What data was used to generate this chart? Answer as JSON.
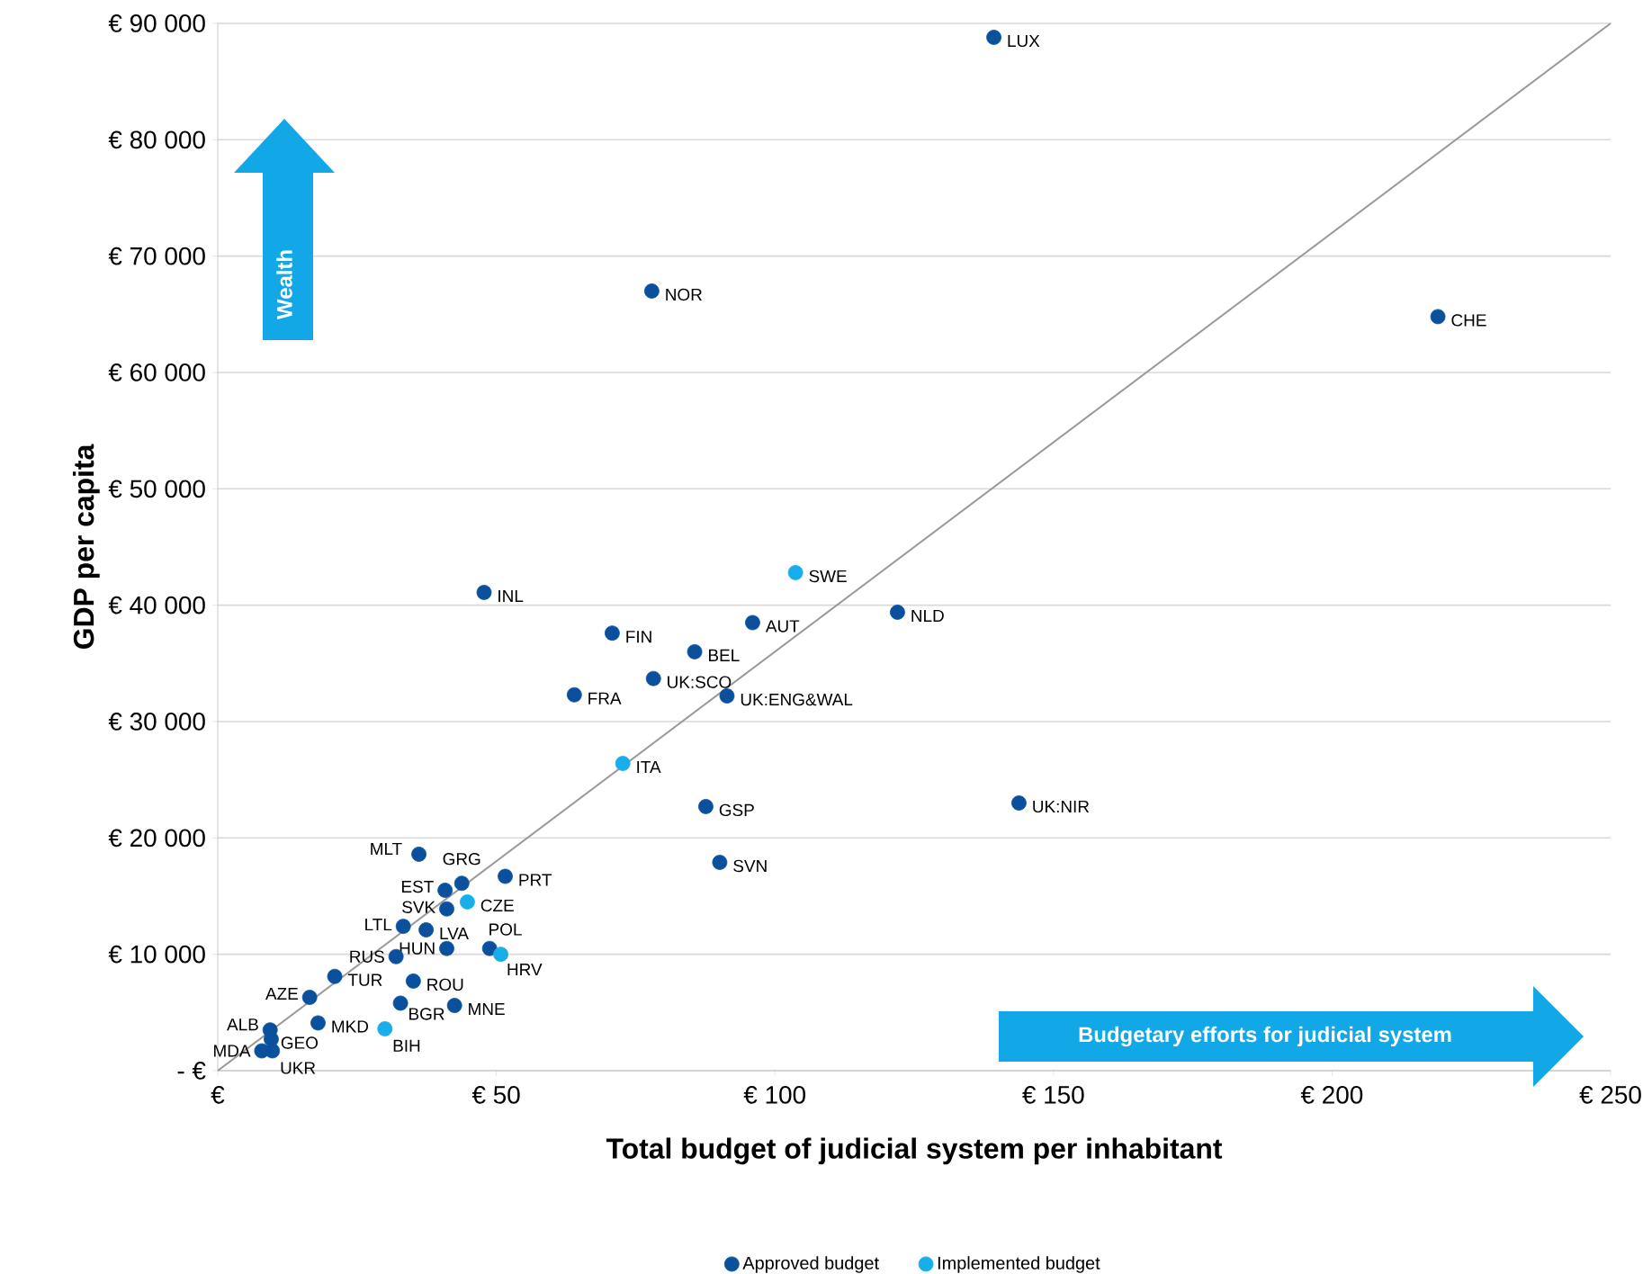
{
  "chart_data": {
    "type": "scatter",
    "xlabel": "Total budget of judicial system per inhabitant",
    "ylabel": "GDP per capita",
    "xlim": [
      0,
      250
    ],
    "ylim": [
      0,
      90000
    ],
    "xticks": [
      {
        "value": 0,
        "label": "€"
      },
      {
        "value": 50,
        "label": "€ 50"
      },
      {
        "value": 100,
        "label": "€ 100"
      },
      {
        "value": 150,
        "label": "€ 150"
      },
      {
        "value": 200,
        "label": "€ 200"
      },
      {
        "value": 250,
        "label": "€ 250"
      }
    ],
    "yticks": [
      {
        "value": 0,
        "label": "- €"
      },
      {
        "value": 10000,
        "label": "€ 10 000"
      },
      {
        "value": 20000,
        "label": "€ 20 000"
      },
      {
        "value": 30000,
        "label": "€ 30 000"
      },
      {
        "value": 40000,
        "label": "€ 40 000"
      },
      {
        "value": 50000,
        "label": "€ 50 000"
      },
      {
        "value": 60000,
        "label": "€ 60 000"
      },
      {
        "value": 70000,
        "label": "€ 70 000"
      },
      {
        "value": 80000,
        "label": "€ 80 000"
      },
      {
        "value": 90000,
        "label": "€ 90 000"
      }
    ],
    "grid": "y",
    "legend": "bottom",
    "series": [
      {
        "name": "Approved budget",
        "marker": "circle",
        "color": "#0b509d",
        "x": [
          139.3,
          219,
          77.9,
          47.8,
          122,
          96,
          70.8,
          85.6,
          78.2,
          64,
          91.4,
          87.6,
          143.8,
          90.1,
          36.1,
          43.8,
          51.6,
          40.8,
          41.1,
          33.3,
          37.4,
          41.1,
          32,
          48.8,
          21,
          35.1,
          16.5,
          32.8,
          42.5,
          18,
          9.4,
          9.6,
          7.9,
          9.8
        ],
        "values": [
          88800,
          64800,
          67000,
          41100,
          39400,
          38500,
          37600,
          36000,
          33700,
          32300,
          32200,
          22700,
          23000,
          17900,
          18600,
          16100,
          16700,
          15500,
          13900,
          12400,
          12100,
          10500,
          9800,
          10500,
          8100,
          7700,
          6300,
          5800,
          5600,
          4100,
          3500,
          2700,
          1700,
          1700
        ]
      },
      {
        "name": "Implemented budget",
        "marker": "circle",
        "color": "#18aeea",
        "x": [
          103.7,
          72.7,
          44.8,
          50.8,
          30
        ],
        "values": [
          42800,
          26400,
          14500,
          10000,
          3600
        ]
      },
      {
        "type": "line",
        "marker": "none",
        "color": "#999999",
        "x": [
          0,
          250
        ],
        "values": [
          0,
          90000
        ]
      }
    ],
    "annotations": [
      {
        "text": "LUX",
        "x": 139.3,
        "y": 88800
      },
      {
        "text": "CHE",
        "x": 219,
        "y": 64800
      },
      {
        "text": "NOR",
        "x": 77.9,
        "y": 67000
      },
      {
        "text": "INL",
        "x": 47.8,
        "y": 41100
      },
      {
        "text": "NLD",
        "x": 122,
        "y": 39400
      },
      {
        "text": "AUT",
        "x": 96,
        "y": 38500
      },
      {
        "text": "FIN",
        "x": 70.8,
        "y": 37600
      },
      {
        "text": "BEL",
        "x": 85.6,
        "y": 36000
      },
      {
        "text": "UK:SCO",
        "x": 78.2,
        "y": 33700
      },
      {
        "text": "FRA",
        "x": 64,
        "y": 32300
      },
      {
        "text": "UK:ENG&WAL",
        "x": 91.4,
        "y": 32200
      },
      {
        "text": "GSP",
        "x": 87.6,
        "y": 22700
      },
      {
        "text": "UK:NIR",
        "x": 143.8,
        "y": 23000
      },
      {
        "text": "SVN",
        "x": 90.1,
        "y": 17900
      },
      {
        "text": "MLT",
        "x": 36.1,
        "y": 18600
      },
      {
        "text": "GRG",
        "x": 43.8,
        "y": 16100
      },
      {
        "text": "PRT",
        "x": 51.6,
        "y": 16700
      },
      {
        "text": "EST",
        "x": 40.8,
        "y": 15500
      },
      {
        "text": "SVK",
        "x": 41.1,
        "y": 13900
      },
      {
        "text": "LTL",
        "x": 33.3,
        "y": 12400
      },
      {
        "text": "LVA",
        "x": 37.4,
        "y": 12100
      },
      {
        "text": "HUN",
        "x": 41.1,
        "y": 10500
      },
      {
        "text": "RUS",
        "x": 32,
        "y": 9800
      },
      {
        "text": "POL",
        "x": 48.8,
        "y": 10500
      },
      {
        "text": "TUR",
        "x": 21,
        "y": 8100
      },
      {
        "text": "ROU",
        "x": 35.1,
        "y": 7700
      },
      {
        "text": "AZE",
        "x": 16.5,
        "y": 6300
      },
      {
        "text": "BGR",
        "x": 32.8,
        "y": 5800
      },
      {
        "text": "MNE",
        "x": 42.5,
        "y": 5600
      },
      {
        "text": "MKD",
        "x": 18,
        "y": 4100
      },
      {
        "text": "ALB",
        "x": 9.4,
        "y": 3500
      },
      {
        "text": "GEO",
        "x": 9.6,
        "y": 2700
      },
      {
        "text": "MDA",
        "x": 7.9,
        "y": 1700
      },
      {
        "text": "UKR",
        "x": 9.8,
        "y": 1700
      },
      {
        "text": "SWE",
        "x": 103.7,
        "y": 42800
      },
      {
        "text": "ITA",
        "x": 72.7,
        "y": 26400
      },
      {
        "text": "CZE",
        "x": 44.8,
        "y": 14500
      },
      {
        "text": "HRV",
        "x": 50.8,
        "y": 10000
      },
      {
        "text": "BIH",
        "x": 30,
        "y": 3600
      },
      "Wealth",
      "Budgetary efforts for judicial system"
    ]
  }
}
